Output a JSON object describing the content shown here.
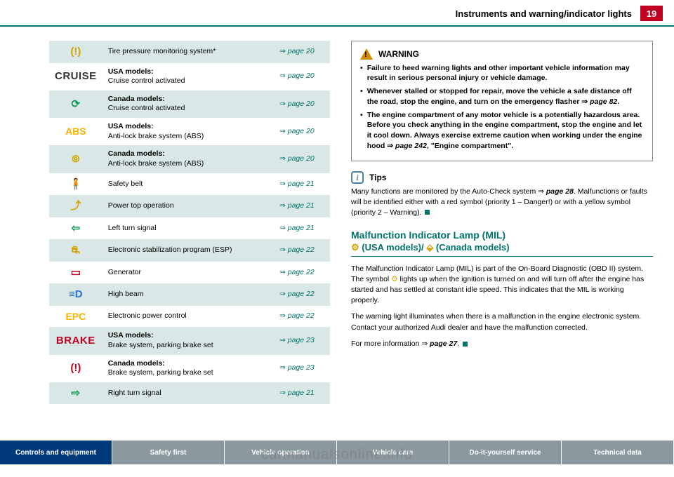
{
  "header": {
    "title": "Instruments and warning/indicator lights",
    "page": "19"
  },
  "rows": [
    {
      "shade": true,
      "iconHtml": "<span class='ico yellow'>(!)</span>",
      "desc": "Tire pressure monitoring system*",
      "ref": "page 20"
    },
    {
      "shade": false,
      "iconHtml": "<span class='cruise'>CRUISE</span>",
      "desc": "<b>USA models:</b><br>Cruise control activated",
      "ref": "page 20"
    },
    {
      "shade": true,
      "iconHtml": "<span class='ico green'>⟳</span>",
      "desc": "<b>Canada models:</b><br>Cruise control activated",
      "ref": "page 20"
    },
    {
      "shade": false,
      "iconHtml": "<span class='abs'>ABS</span>",
      "desc": "<b>USA models:</b><br>Anti-lock brake system (ABS)",
      "ref": "page 20"
    },
    {
      "shade": true,
      "iconHtml": "<span class='ico yellow'>⊚</span>",
      "desc": "<b>Canada models:</b><br>Anti-lock brake system (ABS)",
      "ref": "page 20"
    },
    {
      "shade": false,
      "iconHtml": "<span class='ico red'>🧍</span>",
      "desc": "Safety belt",
      "ref": "page 21"
    },
    {
      "shade": true,
      "iconHtml": "<span class='ico yellow'>⤴</span>",
      "desc": "Power top operation",
      "ref": "page 21"
    },
    {
      "shade": false,
      "iconHtml": "<span class='ico green'>⇦</span>",
      "desc": "Left turn signal",
      "ref": "page 21"
    },
    {
      "shade": true,
      "iconHtml": "<span class='ico yellow'>⛐</span>",
      "desc": "Electronic stabilization program (ESP)",
      "ref": "page 22"
    },
    {
      "shade": false,
      "iconHtml": "<span class='ico red'>▭</span>",
      "desc": "Generator",
      "ref": "page 22"
    },
    {
      "shade": true,
      "iconHtml": "<span class='ico blue'>≡D</span>",
      "desc": "High beam",
      "ref": "page 22"
    },
    {
      "shade": false,
      "iconHtml": "<span class='epc'>EPC</span>",
      "desc": "Electronic power control",
      "ref": "page 22"
    },
    {
      "shade": true,
      "iconHtml": "<span class='brake'>BRAKE</span>",
      "desc": "<b>USA models:</b><br>Brake system, parking brake set",
      "ref": "page 23"
    },
    {
      "shade": false,
      "iconHtml": "<span class='ico red'>(!)</span>",
      "desc": "<b>Canada models:</b><br>Brake system, parking brake set",
      "ref": "page 23"
    },
    {
      "shade": true,
      "iconHtml": "<span class='ico green'>⇨</span>",
      "desc": "Right turn signal",
      "ref": "page 21"
    }
  ],
  "warning": {
    "title": "WARNING",
    "bullets": [
      "Failure to heed warning lights and other important vehicle information may result in serious personal injury or vehicle damage.",
      "Whenever stalled or stopped for repair, move the vehicle a safe distance off the road, stop the engine, and turn on the emergency flasher <span class='arrow-i'>⇒</span> <span class='ref-inline'>page 82</span>.",
      "The engine compartment of any motor vehicle is a potentially hazardous area. Before you check anything in the engine compartment, stop the engine and let it cool down. Always exercise extreme caution when working under the engine hood <span class='arrow-i'>⇒</span> <span class='ref-inline'>page 242</span>, <b>\"Engine compartment\"</b>."
    ]
  },
  "tips": {
    "title": "Tips",
    "body": "Many functions are monitored by the Auto-Check system <span class='arrow-i'>⇒</span> <span class='pageref'>page 28</span>. Malfunctions or faults will be identified either with a red symbol (priority 1 – Danger!) or with a yellow symbol (priority 2 – Warning). <span class='sq'></span>"
  },
  "mil": {
    "title": "Malfunction Indicator Lamp (MIL)",
    "sub": "<span class='mil-yellow'>⚙</span> (USA models)/ <span class='mil-yellow'>⬙</span> (Canada models)",
    "p1": "The Malfunction Indicator Lamp (MIL) is part of the On-Board Diagnostic (OBD II) system. The symbol <span class='mil-yellow'>⚙</span> lights up when the ignition is turned on and will turn off after the engine has started and has settled at constant idle speed. This indicates that the MIL is working properly.",
    "p2": "The warning light illuminates when there is a malfunction in the engine electronic system. Contact your authorized Audi dealer and have the malfunction corrected.",
    "p3": "For more information <span class='arrow-i'>⇒</span> <span class='pageref'>page 27</span>. <span class='sq'></span>"
  },
  "footer": [
    {
      "label": "Controls and equipment",
      "active": true
    },
    {
      "label": "Safety first",
      "active": false
    },
    {
      "label": "Vehicle operation",
      "active": false
    },
    {
      "label": "Vehicle care",
      "active": false
    },
    {
      "label": "Do-it-yourself service",
      "active": false
    },
    {
      "label": "Technical data",
      "active": false
    }
  ],
  "watermark": "carmanualsonline.info"
}
